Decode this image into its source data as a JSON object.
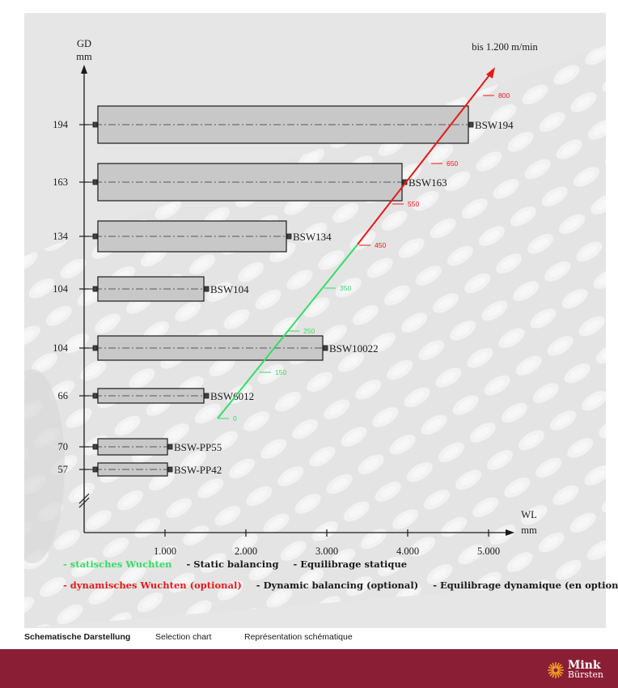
{
  "chart_data": {
    "type": "bar",
    "orientation": "horizontal",
    "title": "",
    "y_axis_title": [
      "GD",
      "mm"
    ],
    "x_axis_title": [
      "WL",
      "mm"
    ],
    "x_ticks": [
      {
        "value": 1000,
        "label": "1.000"
      },
      {
        "value": 2000,
        "label": "2.000"
      },
      {
        "value": 3000,
        "label": "3.000"
      },
      {
        "value": 4000,
        "label": "4.000"
      },
      {
        "value": 5000,
        "label": "5.000"
      }
    ],
    "bars": [
      {
        "name": "BSW194",
        "gd_label": "194",
        "wl": 4750
      },
      {
        "name": "BSW163",
        "gd_label": "163",
        "wl": 3930
      },
      {
        "name": "BSW134",
        "gd_label": "134",
        "wl": 2500
      },
      {
        "name": "BSW104",
        "gd_label": "104",
        "wl": 1480
      },
      {
        "name": "BSW10022",
        "gd_label": "104",
        "wl": 2950
      },
      {
        "name": "BSW6012",
        "gd_label": "66",
        "wl": 1480
      },
      {
        "name": "BSW-PP55",
        "gd_label": "70",
        "wl": 1030
      },
      {
        "name": "BSW-PP42",
        "gd_label": "57",
        "wl": 1030
      }
    ],
    "speed_line_label": "bis 1.200 m/min",
    "speed_marks": [
      {
        "value": "0",
        "type": "static"
      },
      {
        "value": "150",
        "type": "static"
      },
      {
        "value": "250",
        "type": "static"
      },
      {
        "value": "350",
        "type": "static"
      },
      {
        "value": "450",
        "type": "dynamic"
      },
      {
        "value": "550",
        "type": "dynamic"
      },
      {
        "value": "650",
        "type": "dynamic"
      },
      {
        "value": "800",
        "type": "dynamic"
      }
    ],
    "colors": {
      "static": "#33dd66",
      "dynamic": "#e61a1a",
      "bar_fill": "#c8c8c8"
    }
  },
  "legend": {
    "static": [
      "- statisches Wuchten",
      "- Static balancing",
      "- Equilibrage statique"
    ],
    "dynamic": [
      "- dynamisches Wuchten (optional)",
      "- Dynamic balancing (optional)",
      "- Equilibrage dynamique (en option)"
    ]
  },
  "caption": [
    "Schematische Darstellung",
    "Selection chart",
    "Représentation schématique"
  ],
  "logo": {
    "line1": "Mink",
    "line2": "Bürsten",
    "icon": "mink-sun-logo-icon"
  },
  "colors": {
    "footer_band": "#8a1e35",
    "background": "#e6e6e6"
  }
}
